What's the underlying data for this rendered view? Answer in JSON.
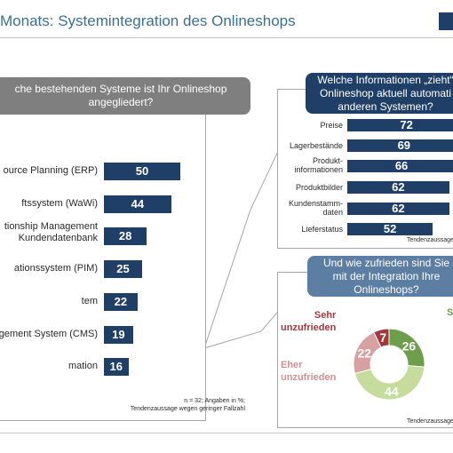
{
  "header": {
    "title": "Monats: Systemintegration des Onlineshops"
  },
  "left_chart": {
    "question": "che bestehenden Systeme ist Ihr Onlineshop angegliedert?",
    "footnote_1": "n = 32; Angaben in %;",
    "footnote_2": "Tendenzaussage wegen geringer Fallzahl",
    "labels": [
      "ource Planning (ERP)",
      "ftssystem (WaWi)",
      "tionship Management",
      "Kundendatenbank",
      "ationssystem (PIM)",
      "tem",
      "gement System (CMS)",
      "mation"
    ]
  },
  "right_top_chart": {
    "question_1": "Welche Informationen „zieht“",
    "question_2": "Onlineshop aktuell automati",
    "question_3": "anderen Systemen?",
    "footnote": "Tendenzaussage"
  },
  "right_bottom_chart": {
    "question_1": "Und wie zufrieden sind Sie",
    "question_2": "mit der Integration Ihre",
    "question_3": "Onlineshops?",
    "label_sehr_1": "Sehr",
    "label_sehr_2": "unzufrieden",
    "label_eher_1": "Eher",
    "label_eher_2": "unzufrieden",
    "label_cut": "S",
    "footnote": "Tendenzaussage"
  },
  "chart_data": [
    {
      "type": "bar",
      "orientation": "horizontal",
      "categories": [
        "ource Planning (ERP)",
        "ftssystem (WaWi)",
        "tionship Management Kundendatenbank",
        "ationssystem (PIM)",
        "tem",
        "gement System (CMS)",
        "mation"
      ],
      "values": [
        50,
        44,
        28,
        25,
        22,
        19,
        16
      ],
      "xlim": [
        0,
        100
      ]
    },
    {
      "type": "bar",
      "orientation": "horizontal",
      "categories": [
        "Preise",
        "Lagerbestände",
        "Produkt-informationen",
        "Produktbilder",
        "Kundenstamm-daten",
        "Lieferstatus"
      ],
      "labels_display": [
        [
          "Preise"
        ],
        [
          "Lagerbestände"
        ],
        [
          "Produkt-",
          "informationen"
        ],
        [
          "Produktbilder"
        ],
        [
          "Kundenstamm-",
          "daten"
        ],
        [
          "Lieferstatus"
        ]
      ],
      "values": [
        72,
        69,
        66,
        62,
        62,
        52
      ],
      "xlim": [
        0,
        100
      ]
    },
    {
      "type": "pie",
      "donut": true,
      "values": [
        26,
        44,
        22,
        7
      ],
      "colors": [
        "#6e9e4c",
        "#c5dc9c",
        "#d9a0a2",
        "#a0393e"
      ]
    }
  ],
  "colors": {
    "bar": "#1f3f66",
    "title": "#3a6f95",
    "red_label": "#a0393e",
    "pink_label": "#d38f92"
  }
}
